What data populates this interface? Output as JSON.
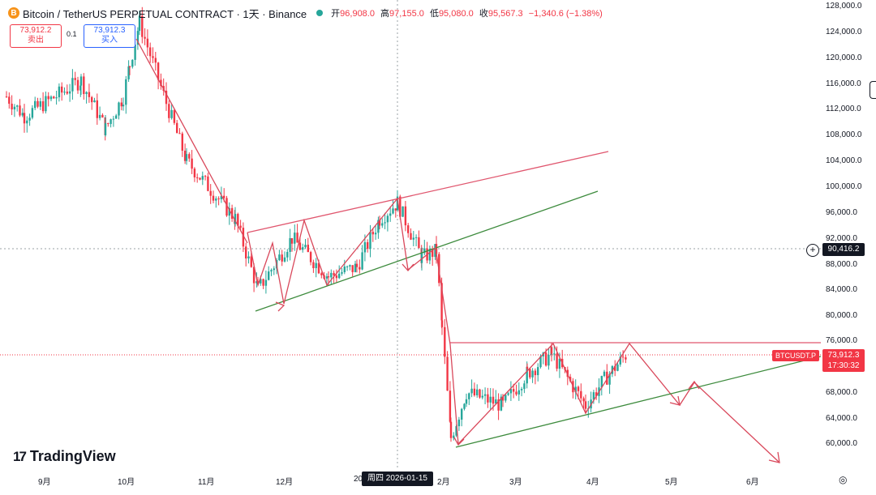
{
  "header": {
    "coin_letter": "B",
    "title": "Bitcoin / TetherUS PERPETUAL CONTRACT · 1天 · Binance",
    "open_label": "开",
    "open": "96,908.0",
    "high_label": "高",
    "high": "97,155.0",
    "low_label": "低",
    "low": "95,080.0",
    "close_label": "收",
    "close": "95,567.3",
    "change": "−1,340.6 (−1.38%)"
  },
  "trade": {
    "sell_price": "73,912.2",
    "sell_label": "卖出",
    "spread": "0.1",
    "buy_price": "73,912.3",
    "buy_label": "买入"
  },
  "y_axis": [
    "128,000.0",
    "124,000.0",
    "120,000.0",
    "116,000.0",
    "112,000.0",
    "108,000.0",
    "104,000.0",
    "100,000.0",
    "96,000.0",
    "92,000.0",
    "88,000.0",
    "84,000.0",
    "80,000.0",
    "76,000.0",
    "68,000.0",
    "64,000.0",
    "60,000.0"
  ],
  "x_axis": [
    {
      "label": "9月"
    },
    {
      "label": "10月"
    },
    {
      "label": "11月"
    },
    {
      "label": "12月"
    },
    {
      "label": "20"
    },
    {
      "label": "2月"
    },
    {
      "label": "3月"
    },
    {
      "label": "4月"
    },
    {
      "label": "5月"
    },
    {
      "label": "6月"
    }
  ],
  "crosshair": {
    "price": "90,416.2",
    "date": "周四 2026-01-15"
  },
  "symbol_tag": "BTCUSDT.P",
  "last_price": "73,912.3",
  "countdown": "17:30:32",
  "logo": {
    "mark": "17",
    "text": "TradingView"
  },
  "colors": {
    "up": "#26a69a",
    "down": "#f23645",
    "resistance": "#e0566e",
    "support": "#3d8b3d",
    "arrow": "#d9485b"
  },
  "chart_data": {
    "type": "candlestick",
    "symbol": "BTCUSDT.P",
    "ylim": [
      58000,
      129000
    ],
    "path_anchors": [
      {
        "x": "9月",
        "close": 114000
      },
      {
        "x": "9月",
        "close": 111000
      },
      {
        "x": "9月",
        "close": 116500
      },
      {
        "x": "9月",
        "close": 109000
      },
      {
        "x": "10月",
        "close": 114000
      },
      {
        "x": "10月",
        "close": 119000
      },
      {
        "x": "10月",
        "close": 125500
      },
      {
        "x": "11月",
        "close": 113000
      },
      {
        "x": "11月",
        "close": 104000
      },
      {
        "x": "11月",
        "close": 95000
      },
      {
        "x": "12月",
        "close": 84000
      },
      {
        "x": "12月",
        "close": 92000
      },
      {
        "x": "12月",
        "close": 86000
      },
      {
        "x": "12月",
        "close": 87500
      },
      {
        "x": "2026-01-15",
        "close": 95000
      },
      {
        "x": "2026-01-15",
        "close": 97500
      },
      {
        "x": "2026-01-15",
        "close": 89000
      },
      {
        "x": "2月",
        "close": 90000
      },
      {
        "x": "2月",
        "close": 78000
      },
      {
        "x": "2月",
        "close": 61000
      },
      {
        "x": "2月",
        "close": 68000
      },
      {
        "x": "3月",
        "close": 66000
      },
      {
        "x": "3月",
        "close": 71000
      },
      {
        "x": "3月",
        "close": 74000
      },
      {
        "x": "4月",
        "close": 66000
      },
      {
        "x": "4月",
        "close": 70000
      },
      {
        "x": "4月",
        "close": 73912
      }
    ]
  }
}
